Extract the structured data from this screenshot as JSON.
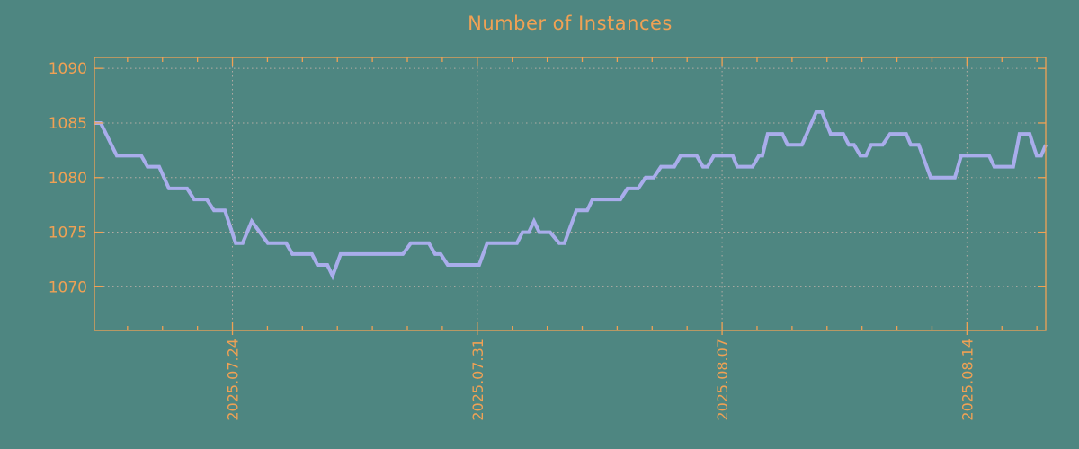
{
  "chart_data": {
    "type": "line",
    "title": "Number of Instances",
    "xlabel": "",
    "ylabel": "",
    "ylim": [
      1066,
      1091
    ],
    "y_ticks": [
      1070,
      1075,
      1080,
      1085,
      1090
    ],
    "xlim_days": [
      0,
      27.2
    ],
    "x_ticks": [
      {
        "day": 3.947,
        "label": "2025.07.24"
      },
      {
        "day": 10.947,
        "label": "2025.07.31"
      },
      {
        "day": 17.947,
        "label": "2025.08.07"
      },
      {
        "day": 24.947,
        "label": "2025.08.14"
      }
    ],
    "x_minor_tick_phase_day": 0.947,
    "x_minor_tick_step_days": 1,
    "grid": "dotted gridlines at major x and y ticks, full box border, inward ticks on all four sides",
    "legend_position": "none",
    "series": [
      {
        "name": "instances",
        "points": [
          [
            0.0,
            1085
          ],
          [
            0.18,
            1085
          ],
          [
            0.64,
            1082
          ],
          [
            1.34,
            1082
          ],
          [
            1.52,
            1081
          ],
          [
            1.85,
            1081
          ],
          [
            2.13,
            1079
          ],
          [
            2.65,
            1079
          ],
          [
            2.85,
            1078
          ],
          [
            3.21,
            1078
          ],
          [
            3.42,
            1077
          ],
          [
            3.73,
            1077
          ],
          [
            4.04,
            1074
          ],
          [
            4.24,
            1074
          ],
          [
            4.5,
            1076
          ],
          [
            4.96,
            1074
          ],
          [
            5.48,
            1074
          ],
          [
            5.66,
            1073
          ],
          [
            6.22,
            1073
          ],
          [
            6.38,
            1072
          ],
          [
            6.66,
            1072
          ],
          [
            6.81,
            1071
          ],
          [
            7.04,
            1073
          ],
          [
            8.82,
            1073
          ],
          [
            9.05,
            1074
          ],
          [
            9.56,
            1074
          ],
          [
            9.74,
            1073
          ],
          [
            9.9,
            1073
          ],
          [
            10.1,
            1072
          ],
          [
            11.0,
            1072
          ],
          [
            11.23,
            1074
          ],
          [
            12.08,
            1074
          ],
          [
            12.24,
            1075
          ],
          [
            12.42,
            1075
          ],
          [
            12.57,
            1076
          ],
          [
            12.72,
            1075
          ],
          [
            13.03,
            1075
          ],
          [
            13.29,
            1074
          ],
          [
            13.44,
            1074
          ],
          [
            13.78,
            1077
          ],
          [
            14.09,
            1077
          ],
          [
            14.24,
            1078
          ],
          [
            15.04,
            1078
          ],
          [
            15.24,
            1079
          ],
          [
            15.55,
            1079
          ],
          [
            15.76,
            1080
          ],
          [
            15.99,
            1080
          ],
          [
            16.2,
            1081
          ],
          [
            16.58,
            1081
          ],
          [
            16.76,
            1082
          ],
          [
            17.22,
            1082
          ],
          [
            17.4,
            1081
          ],
          [
            17.53,
            1081
          ],
          [
            17.71,
            1082
          ],
          [
            18.25,
            1082
          ],
          [
            18.38,
            1081
          ],
          [
            18.82,
            1081
          ],
          [
            19.0,
            1082
          ],
          [
            19.1,
            1082
          ],
          [
            19.25,
            1084
          ],
          [
            19.67,
            1084
          ],
          [
            19.82,
            1083
          ],
          [
            20.23,
            1083
          ],
          [
            20.64,
            1086
          ],
          [
            20.8,
            1086
          ],
          [
            21.05,
            1084
          ],
          [
            21.41,
            1084
          ],
          [
            21.57,
            1083
          ],
          [
            21.72,
            1083
          ],
          [
            21.9,
            1082
          ],
          [
            22.06,
            1082
          ],
          [
            22.21,
            1083
          ],
          [
            22.54,
            1083
          ],
          [
            22.75,
            1084
          ],
          [
            23.21,
            1084
          ],
          [
            23.34,
            1083
          ],
          [
            23.57,
            1083
          ],
          [
            23.91,
            1080
          ],
          [
            24.6,
            1080
          ],
          [
            24.78,
            1082
          ],
          [
            25.58,
            1082
          ],
          [
            25.73,
            1081
          ],
          [
            26.27,
            1081
          ],
          [
            26.45,
            1084
          ],
          [
            26.74,
            1084
          ],
          [
            26.94,
            1082
          ],
          [
            27.07,
            1082
          ],
          [
            27.2,
            1083
          ]
        ]
      }
    ]
  },
  "colors": {
    "background": "#4e8681",
    "axis_and_text": "#f0a154",
    "series_line": "#a9adeb",
    "gridline": "#b3aca4"
  }
}
